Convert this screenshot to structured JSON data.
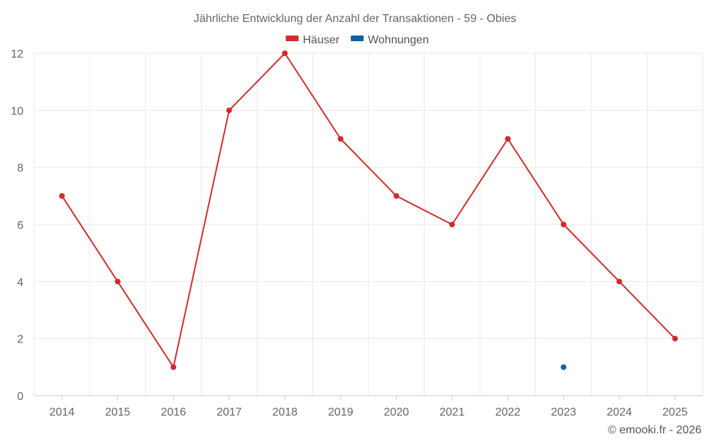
{
  "chart_data": {
    "type": "line",
    "title": "Jährliche Entwicklung der Anzahl der Transaktionen - 59 - Obies",
    "categories": [
      "2014",
      "2015",
      "2016",
      "2017",
      "2018",
      "2019",
      "2020",
      "2021",
      "2022",
      "2023",
      "2024",
      "2025"
    ],
    "ylim": [
      0,
      12
    ],
    "yticks": [
      0,
      2,
      4,
      6,
      8,
      10,
      12
    ],
    "grid": true,
    "legend_position": "top-center",
    "series": [
      {
        "name": "Häuser",
        "color": "#d22b2b",
        "values": [
          7,
          4,
          1,
          10,
          12,
          9,
          7,
          6,
          9,
          6,
          4,
          2
        ]
      },
      {
        "name": "Wohnungen",
        "color": "#1060a0",
        "values": [
          null,
          null,
          null,
          null,
          null,
          null,
          null,
          null,
          null,
          1,
          null,
          null
        ]
      }
    ],
    "xlabel": "",
    "ylabel": ""
  },
  "credit": "© emooki.fr - 2026"
}
